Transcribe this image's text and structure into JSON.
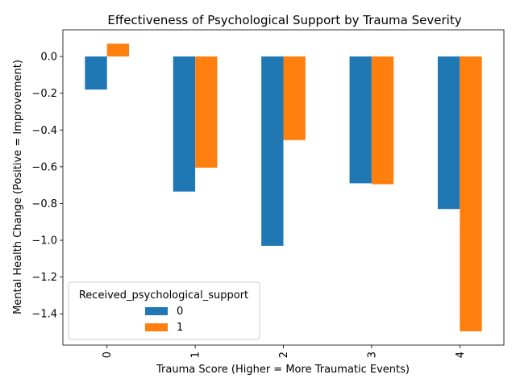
{
  "chart_data": {
    "type": "bar",
    "title": "Effectiveness of Psychological Support by Trauma Severity",
    "xlabel": "Trauma Score (Higher = More Traumatic Events)",
    "ylabel": "Mental Health Change (Positive = Improvement)",
    "categories": [
      "0",
      "1",
      "2",
      "3",
      "4"
    ],
    "series": [
      {
        "name": "0",
        "color": "#1f77b4",
        "values": [
          -0.18,
          -0.735,
          -1.03,
          -0.69,
          -0.83
        ]
      },
      {
        "name": "1",
        "color": "#ff7f0e",
        "values": [
          0.07,
          -0.605,
          -0.455,
          -0.695,
          -1.495
        ]
      }
    ],
    "yticks": [
      "-1.4",
      "-1.2",
      "-1.0",
      "-0.8",
      "-0.6",
      "-0.4",
      "-0.2",
      "0.0"
    ],
    "ylim": [
      -1.57,
      0.145
    ],
    "grid": false,
    "legend": {
      "title": "Received_psychological_support",
      "position": "lower-left"
    }
  }
}
